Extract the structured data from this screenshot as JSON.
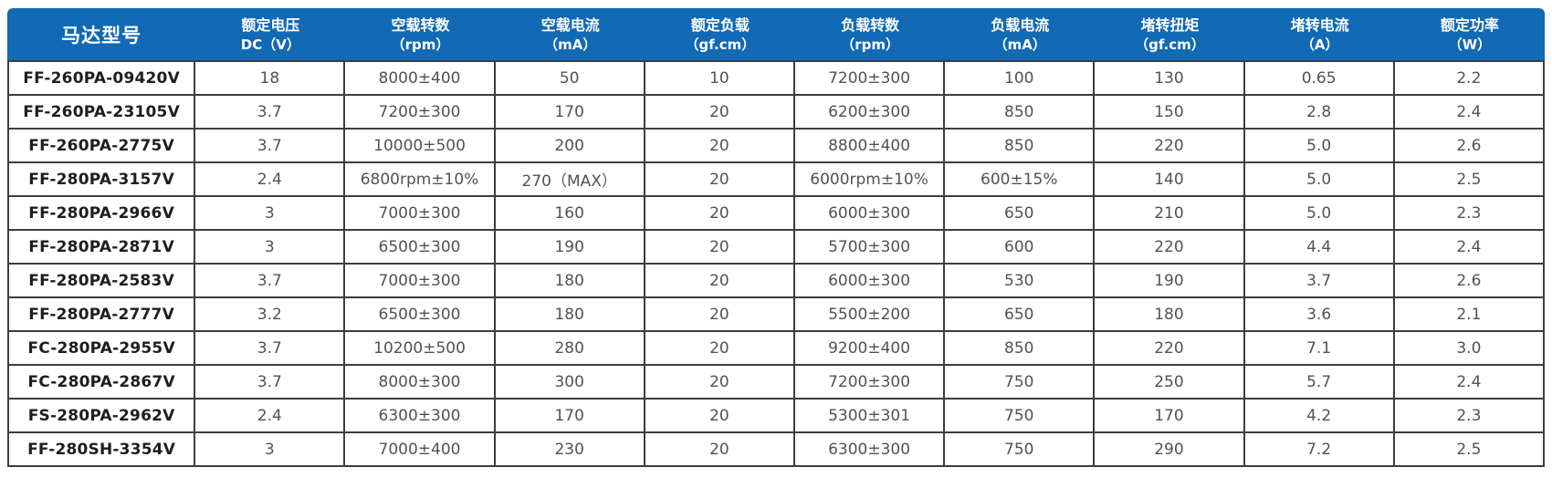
{
  "table": {
    "name": "motor-specifications",
    "columns": [
      {
        "label": "马达型号",
        "sub": ""
      },
      {
        "label": "额定电压",
        "sub": "DC（V）"
      },
      {
        "label": "空载转数",
        "sub": "（rpm）"
      },
      {
        "label": "空载电流",
        "sub": "（mA）"
      },
      {
        "label": "额定负载",
        "sub": "（gf.cm）"
      },
      {
        "label": "负载转数",
        "sub": "（rpm）"
      },
      {
        "label": "负载电流",
        "sub": "（mA）"
      },
      {
        "label": "堵转扭矩",
        "sub": "（gf.cm）"
      },
      {
        "label": "堵转电流",
        "sub": "（A）"
      },
      {
        "label": "额定功率",
        "sub": "（W）"
      }
    ],
    "rows": [
      [
        "FF-260PA-09420V",
        "18",
        "8000±400",
        "50",
        "10",
        "7200±300",
        "100",
        "130",
        "0.65",
        "2.2"
      ],
      [
        "FF-260PA-23105V",
        "3.7",
        "7200±300",
        "170",
        "20",
        "6200±300",
        "850",
        "150",
        "2.8",
        "2.4"
      ],
      [
        "FF-260PA-2775V",
        "3.7",
        "10000±500",
        "200",
        "20",
        "8800±400",
        "850",
        "220",
        "5.0",
        "2.6"
      ],
      [
        "FF-280PA-3157V",
        "2.4",
        "6800rpm±10%",
        "270（MAX）",
        "20",
        "6000rpm±10%",
        "600±15%",
        "140",
        "5.0",
        "2.5"
      ],
      [
        "FF-280PA-2966V",
        "3",
        "7000±300",
        "160",
        "20",
        "6000±300",
        "650",
        "210",
        "5.0",
        "2.3"
      ],
      [
        "FF-280PA-2871V",
        "3",
        "6500±300",
        "190",
        "20",
        "5700±300",
        "600",
        "220",
        "4.4",
        "2.4"
      ],
      [
        "FF-280PA-2583V",
        "3.7",
        "7000±300",
        "180",
        "20",
        "6000±300",
        "530",
        "190",
        "3.7",
        "2.6"
      ],
      [
        "FF-280PA-2777V",
        "3.2",
        "6500±300",
        "180",
        "20",
        "5500±200",
        "650",
        "180",
        "3.6",
        "2.1"
      ],
      [
        "FC-280PA-2955V",
        "3.7",
        "10200±500",
        "280",
        "20",
        "9200±400",
        "850",
        "220",
        "7.1",
        "3.0"
      ],
      [
        "FC-280PA-2867V",
        "3.7",
        "8000±300",
        "300",
        "20",
        "7200±300",
        "750",
        "250",
        "5.7",
        "2.4"
      ],
      [
        "FS-280PA-2962V",
        "2.4",
        "6300±300",
        "170",
        "20",
        "5300±301",
        "750",
        "170",
        "4.2",
        "2.3"
      ],
      [
        "FF-280SH-3354V",
        "3",
        "7000±400",
        "230",
        "20",
        "6300±300",
        "750",
        "290",
        "7.2",
        "2.5"
      ]
    ],
    "colors": {
      "header_bg": "#1269B4",
      "header_text": "#FFFFFF",
      "grid_border": "#3D3D3D",
      "model_text": "#1E1E1F",
      "value_text": "#515254"
    }
  }
}
